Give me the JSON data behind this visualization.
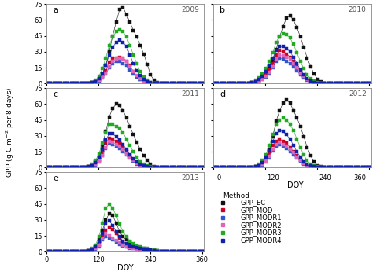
{
  "years": [
    "2009",
    "2010",
    "2011",
    "2012",
    "2013"
  ],
  "panel_labels": [
    "a",
    "b",
    "c",
    "d",
    "e"
  ],
  "doy": [
    1,
    9,
    17,
    25,
    33,
    41,
    49,
    57,
    65,
    73,
    81,
    89,
    97,
    105,
    113,
    121,
    129,
    137,
    145,
    153,
    161,
    169,
    177,
    185,
    193,
    201,
    209,
    217,
    225,
    233,
    241,
    249,
    257,
    265,
    273,
    281,
    289,
    297,
    305,
    313,
    321,
    329,
    337,
    345,
    353,
    361
  ],
  "GPP_EC": {
    "2009": [
      0,
      0,
      0,
      0,
      0,
      0,
      0,
      0,
      0,
      0,
      0,
      0,
      0.3,
      0.8,
      1.5,
      4,
      9,
      17,
      30,
      45,
      58,
      70,
      72,
      65,
      58,
      50,
      44,
      36,
      28,
      18,
      8,
      3,
      1,
      0.3,
      0,
      0,
      0,
      0,
      0,
      0,
      0,
      0,
      0,
      0,
      0,
      0
    ],
    "2010": [
      0,
      0,
      0,
      0,
      0,
      0,
      0,
      0,
      0,
      0,
      0.3,
      0.8,
      1.5,
      3,
      5,
      8,
      14,
      21,
      32,
      44,
      54,
      62,
      64,
      60,
      53,
      44,
      34,
      24,
      16,
      9,
      4,
      1.5,
      0.5,
      0,
      0,
      0,
      0,
      0,
      0,
      0,
      0,
      0,
      0,
      0,
      0,
      0
    ],
    "2011": [
      0,
      0,
      0,
      0,
      0,
      0,
      0,
      0,
      0,
      0,
      0,
      0.3,
      0.8,
      2,
      5,
      10,
      20,
      34,
      48,
      56,
      60,
      59,
      54,
      47,
      39,
      31,
      24,
      17,
      11,
      7,
      3,
      1,
      0.4,
      0.1,
      0,
      0,
      0,
      0,
      0,
      0,
      0,
      0,
      0,
      0,
      0,
      0
    ],
    "2012": [
      0,
      0,
      0,
      0,
      0,
      0,
      0,
      0,
      0,
      0,
      0,
      0.3,
      0.8,
      2,
      5,
      10,
      17,
      29,
      44,
      54,
      61,
      64,
      61,
      54,
      47,
      39,
      29,
      19,
      11,
      5,
      2,
      0.8,
      0.2,
      0,
      0,
      0,
      0,
      0,
      0,
      0,
      0,
      0,
      0,
      0,
      0,
      0
    ],
    "2013": [
      0,
      0,
      0,
      0,
      0,
      0,
      0,
      0,
      0,
      0,
      0,
      0.3,
      0.8,
      2,
      5,
      11,
      20,
      30,
      36,
      34,
      27,
      19,
      14,
      11,
      9,
      7,
      5,
      4,
      3,
      2.5,
      2,
      1.5,
      0.8,
      0.3,
      0,
      0,
      0,
      0,
      0,
      0,
      0,
      0,
      0,
      0,
      0,
      0
    ]
  },
  "GPP_MOD": {
    "2009": [
      0,
      0,
      0,
      0,
      0,
      0,
      0,
      0,
      0,
      0,
      0,
      0,
      0.2,
      0.6,
      1.2,
      3,
      7,
      12,
      20,
      24,
      24,
      25,
      24,
      21,
      17,
      11,
      7,
      4,
      2,
      0.8,
      0.3,
      0.1,
      0,
      0,
      0,
      0,
      0,
      0,
      0,
      0,
      0,
      0,
      0,
      0,
      0,
      0
    ],
    "2010": [
      0,
      0,
      0,
      0,
      0,
      0,
      0,
      0,
      0,
      0,
      0.2,
      0.6,
      1.2,
      2.5,
      5,
      8,
      13,
      19,
      27,
      31,
      30,
      28,
      25,
      21,
      17,
      11,
      7,
      4,
      2,
      0.8,
      0.3,
      0.1,
      0,
      0,
      0,
      0,
      0,
      0,
      0,
      0,
      0,
      0,
      0,
      0,
      0,
      0
    ],
    "2011": [
      0,
      0,
      0,
      0,
      0,
      0,
      0,
      0,
      0,
      0,
      0,
      0.2,
      0.6,
      1.2,
      3,
      7,
      14,
      23,
      28,
      27,
      25,
      23,
      19,
      15,
      11,
      7,
      4.5,
      2.5,
      1.2,
      0.6,
      0.2,
      0.05,
      0,
      0,
      0,
      0,
      0,
      0,
      0,
      0,
      0,
      0,
      0,
      0,
      0,
      0
    ],
    "2012": [
      0,
      0,
      0,
      0,
      0,
      0,
      0,
      0,
      0,
      0,
      0,
      0.2,
      0.6,
      1.2,
      3,
      7,
      13,
      21,
      25,
      27,
      25,
      23,
      19,
      15,
      11,
      7,
      4,
      2.2,
      1.1,
      0.5,
      0.2,
      0.05,
      0,
      0,
      0,
      0,
      0,
      0,
      0,
      0,
      0,
      0,
      0,
      0,
      0,
      0
    ],
    "2013": [
      0,
      0,
      0,
      0,
      0,
      0,
      0,
      0,
      0,
      0,
      0,
      0.2,
      0.6,
      1.2,
      3,
      7,
      14,
      20,
      23,
      21,
      17,
      13,
      9,
      7,
      5.5,
      4.5,
      3.5,
      2.8,
      2,
      1.2,
      0.6,
      0.2,
      0.05,
      0,
      0,
      0,
      0,
      0,
      0,
      0,
      0,
      0,
      0,
      0,
      0,
      0
    ]
  },
  "GPP_MODR1": {
    "2009": [
      0,
      0,
      0,
      0,
      0,
      0,
      0,
      0,
      0,
      0,
      0,
      0,
      0.15,
      0.4,
      0.9,
      2.5,
      5,
      9,
      15,
      19,
      21,
      21,
      19,
      17,
      13,
      9,
      6,
      3.5,
      1.8,
      0.8,
      0.3,
      0.08,
      0,
      0,
      0,
      0,
      0,
      0,
      0,
      0,
      0,
      0,
      0,
      0,
      0,
      0
    ],
    "2010": [
      0,
      0,
      0,
      0,
      0,
      0,
      0,
      0,
      0,
      0,
      0.15,
      0.4,
      0.9,
      1.8,
      3.5,
      6,
      9,
      15,
      21,
      24,
      23,
      21,
      19,
      16,
      12,
      8,
      5.5,
      3,
      1.4,
      0.6,
      0.2,
      0.05,
      0,
      0,
      0,
      0,
      0,
      0,
      0,
      0,
      0,
      0,
      0,
      0,
      0,
      0
    ],
    "2011": [
      0,
      0,
      0,
      0,
      0,
      0,
      0,
      0,
      0,
      0,
      0,
      0.15,
      0.4,
      0.9,
      2.5,
      5,
      11,
      18,
      23,
      22,
      20,
      18,
      15,
      12,
      9,
      6,
      3.5,
      1.8,
      0.9,
      0.4,
      0.15,
      0.04,
      0,
      0,
      0,
      0,
      0,
      0,
      0,
      0,
      0,
      0,
      0,
      0,
      0,
      0
    ],
    "2012": [
      0,
      0,
      0,
      0,
      0,
      0,
      0,
      0,
      0,
      0,
      0,
      0.15,
      0.4,
      0.9,
      2.5,
      5,
      9,
      16,
      20,
      22,
      20,
      18,
      15,
      12,
      9,
      6,
      3.5,
      1.8,
      0.9,
      0.4,
      0.15,
      0.04,
      0,
      0,
      0,
      0,
      0,
      0,
      0,
      0,
      0,
      0,
      0,
      0,
      0,
      0
    ],
    "2013": [
      0,
      0,
      0,
      0,
      0,
      0,
      0,
      0,
      0,
      0,
      0,
      0.15,
      0.4,
      0.9,
      2.5,
      5,
      11,
      14,
      13,
      11,
      9,
      7,
      5.5,
      4.5,
      3.5,
      2.8,
      2.2,
      1.8,
      1.4,
      1,
      0.6,
      0.2,
      0.05,
      0,
      0,
      0,
      0,
      0,
      0,
      0,
      0,
      0,
      0,
      0,
      0,
      0
    ]
  },
  "GPP_MODR2": {
    "2009": [
      0,
      0,
      0,
      0,
      0,
      0,
      0,
      0,
      0,
      0,
      0,
      0,
      0.15,
      0.5,
      1,
      2.8,
      6,
      10,
      16,
      21,
      23,
      24,
      23,
      21,
      16,
      11,
      7.5,
      4.5,
      2.3,
      1,
      0.4,
      0.1,
      0,
      0,
      0,
      0,
      0,
      0,
      0,
      0,
      0,
      0,
      0,
      0,
      0,
      0
    ],
    "2010": [
      0,
      0,
      0,
      0,
      0,
      0,
      0,
      0,
      0,
      0,
      0.15,
      0.5,
      1,
      2,
      4,
      6.5,
      10.5,
      16,
      23,
      27,
      26,
      25,
      23,
      19,
      15,
      10,
      6.5,
      3.5,
      1.8,
      0.8,
      0.3,
      0.08,
      0,
      0,
      0,
      0,
      0,
      0,
      0,
      0,
      0,
      0,
      0,
      0,
      0,
      0
    ],
    "2011": [
      0,
      0,
      0,
      0,
      0,
      0,
      0,
      0,
      0,
      0,
      0,
      0.15,
      0.5,
      1,
      2.8,
      6,
      11,
      19,
      25,
      24,
      22,
      20,
      17,
      13,
      9.5,
      6.5,
      3.8,
      1.9,
      0.9,
      0.4,
      0.15,
      0.04,
      0,
      0,
      0,
      0,
      0,
      0,
      0,
      0,
      0,
      0,
      0,
      0,
      0,
      0
    ],
    "2012": [
      0,
      0,
      0,
      0,
      0,
      0,
      0,
      0,
      0,
      0,
      0,
      0.15,
      0.5,
      1,
      2.8,
      6,
      10.5,
      17,
      22,
      24,
      22,
      20,
      17,
      14,
      10,
      6.5,
      3.8,
      1.9,
      0.9,
      0.4,
      0.15,
      0.04,
      0,
      0,
      0,
      0,
      0,
      0,
      0,
      0,
      0,
      0,
      0,
      0,
      0,
      0
    ],
    "2013": [
      0,
      0,
      0,
      0,
      0,
      0,
      0,
      0,
      0,
      0,
      0,
      0.15,
      0.5,
      1,
      2.8,
      6.5,
      12,
      17,
      15,
      13,
      10.5,
      8.5,
      6.5,
      5,
      4,
      3.2,
      2.5,
      2,
      1.6,
      1.1,
      0.6,
      0.25,
      0.08,
      0,
      0,
      0,
      0,
      0,
      0,
      0,
      0,
      0,
      0,
      0,
      0,
      0
    ]
  },
  "GPP_MODR3": {
    "2009": [
      0,
      0,
      0,
      0,
      0,
      0,
      0,
      0,
      0,
      0,
      0,
      0,
      0.4,
      1.2,
      2.8,
      7,
      14,
      24,
      36,
      44,
      49,
      51,
      49,
      44,
      36,
      27,
      19,
      11,
      6,
      2.8,
      1.2,
      0.4,
      0.08,
      0,
      0,
      0,
      0,
      0,
      0,
      0,
      0,
      0,
      0,
      0,
      0,
      0
    ],
    "2010": [
      0,
      0,
      0,
      0,
      0,
      0,
      0,
      0,
      0,
      0,
      0.4,
      1.2,
      2.8,
      5,
      9,
      14,
      21,
      29,
      39,
      45,
      47,
      46,
      43,
      37,
      29,
      21,
      14,
      8,
      4.5,
      2.2,
      1,
      0.4,
      0.08,
      0,
      0,
      0,
      0,
      0,
      0,
      0,
      0,
      0,
      0,
      0,
      0,
      0
    ],
    "2011": [
      0,
      0,
      0,
      0,
      0,
      0,
      0,
      0,
      0,
      0,
      0,
      0.4,
      1.2,
      2.8,
      6.5,
      13,
      23,
      33,
      41,
      41,
      39,
      37,
      33,
      27,
      21,
      15,
      9.5,
      5.5,
      2.8,
      1.3,
      0.6,
      0.2,
      0.05,
      0,
      0,
      0,
      0,
      0,
      0,
      0,
      0,
      0,
      0,
      0,
      0,
      0
    ],
    "2012": [
      0,
      0,
      0,
      0,
      0,
      0,
      0,
      0,
      0,
      0,
      0,
      0.4,
      1.2,
      2.8,
      6.5,
      12,
      21,
      31,
      41,
      45,
      47,
      45,
      41,
      35,
      27,
      19,
      12,
      6.5,
      3.2,
      1.6,
      0.7,
      0.25,
      0.06,
      0,
      0,
      0,
      0,
      0,
      0,
      0,
      0,
      0,
      0,
      0,
      0,
      0
    ],
    "2013": [
      0,
      0,
      0,
      0,
      0,
      0,
      0,
      0,
      0,
      0,
      0,
      0.4,
      1.2,
      2.8,
      6.5,
      14,
      27,
      41,
      45,
      41,
      34,
      26,
      19,
      14,
      10,
      7.5,
      5.5,
      4.5,
      3.5,
      2.8,
      2,
      1.5,
      0.9,
      0.4,
      0.1,
      0,
      0,
      0,
      0,
      0,
      0,
      0,
      0,
      0,
      0,
      0
    ]
  },
  "GPP_MODR4": {
    "2009": [
      0,
      0,
      0,
      0,
      0,
      0,
      0,
      0,
      0,
      0,
      0,
      0,
      0.25,
      0.7,
      1.8,
      4.5,
      9,
      17,
      27,
      34,
      39,
      41,
      39,
      35,
      27,
      19,
      12,
      7.5,
      3.8,
      1.8,
      0.7,
      0.25,
      0.06,
      0,
      0,
      0,
      0,
      0,
      0,
      0,
      0,
      0,
      0,
      0,
      0,
      0
    ],
    "2010": [
      0,
      0,
      0,
      0,
      0,
      0,
      0,
      0,
      0,
      0,
      0.25,
      0.7,
      1.8,
      3.5,
      6.5,
      11,
      17,
      24,
      31,
      35,
      35,
      33,
      30,
      25,
      19,
      13,
      8.5,
      4.8,
      2.4,
      1.1,
      0.4,
      0.15,
      0,
      0,
      0,
      0,
      0,
      0,
      0,
      0,
      0,
      0,
      0,
      0,
      0,
      0
    ],
    "2011": [
      0,
      0,
      0,
      0,
      0,
      0,
      0,
      0,
      0,
      0,
      0,
      0.25,
      0.7,
      1.8,
      4.5,
      9.5,
      17,
      26,
      32,
      32,
      29,
      26,
      22,
      17,
      12,
      8.5,
      5,
      2.8,
      1.4,
      0.6,
      0.25,
      0.08,
      0,
      0,
      0,
      0,
      0,
      0,
      0,
      0,
      0,
      0,
      0,
      0,
      0,
      0
    ],
    "2012": [
      0,
      0,
      0,
      0,
      0,
      0,
      0,
      0,
      0,
      0,
      0,
      0.25,
      0.7,
      1.8,
      4.5,
      9.5,
      16,
      25,
      32,
      35,
      34,
      31,
      27,
      21,
      15,
      10,
      5.5,
      2.8,
      1.4,
      0.6,
      0.25,
      0.08,
      0,
      0,
      0,
      0,
      0,
      0,
      0,
      0,
      0,
      0,
      0,
      0,
      0,
      0
    ],
    "2013": [
      0,
      0,
      0,
      0,
      0,
      0,
      0,
      0,
      0,
      0,
      0,
      0.25,
      0.7,
      1.8,
      4.5,
      9.5,
      17,
      27,
      29,
      25,
      19,
      14,
      10,
      7.5,
      5.5,
      4.5,
      3.8,
      3,
      2.4,
      1.9,
      1.4,
      0.9,
      0.45,
      0.15,
      0,
      0,
      0,
      0,
      0,
      0,
      0,
      0,
      0,
      0,
      0,
      0
    ]
  },
  "colors": {
    "GPP_EC": "#111111",
    "GPP_MOD": "#cc0022",
    "GPP_MODR1": "#3355cc",
    "GPP_MODR2": "#dd66bb",
    "GPP_MODR3": "#22aa22",
    "GPP_MODR4": "#1122aa"
  },
  "ylabel": "GPP (g C m$^{-2}$ per 8 days)",
  "xlabel": "DOY",
  "ylim": [
    0,
    75
  ],
  "yticks": [
    0,
    15,
    30,
    45,
    60,
    75
  ],
  "xticks": [
    0,
    120,
    240,
    360
  ]
}
